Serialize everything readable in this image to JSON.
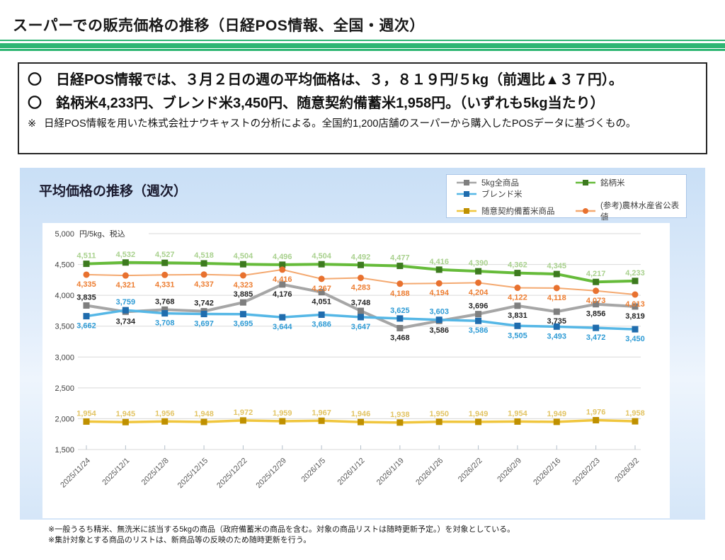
{
  "page": {
    "title": "スーパーでの販売価格の推移（日経POS情報、全国・週次）"
  },
  "colors": {
    "accent_green": "#2eb673",
    "panel_blue": "#c9dff6",
    "gridline": "#d9d9d9"
  },
  "summary_box": {
    "lines": [
      {
        "bullet": "〇",
        "text": "日経POS情報では、３月２日の週の平均価格は、３，８１９円/５kg（前週比▲３７円）。"
      },
      {
        "bullet": "〇",
        "text": "銘柄米4,233円、ブレンド米3,450円、随意契約備蓄米1,958円。（いずれも5kg当たり）"
      },
      {
        "bullet": "※",
        "text": "日経POS情報を用いた株式会社ナウキャストの分析による。全国約1,200店舗のスーパーから購入したPOSデータに基づくもの。"
      }
    ]
  },
  "chart_panel": {
    "title": "平均価格の推移（週次）"
  },
  "chart_data": {
    "type": "line",
    "title": "平均価格の推移（週次）",
    "ylabel": "円/5kg、税込",
    "ylim": [
      1500,
      5000
    ],
    "ytick_step": 500,
    "grid": true,
    "legend_position": "top-right",
    "categories": [
      "2025/11/24",
      "2025/12/1",
      "2025/12/8",
      "2025/12/15",
      "2025/12/22",
      "2025/12/29",
      "2026/1/5",
      "2026/1/12",
      "2026/1/19",
      "2026/1/26",
      "2026/2/2",
      "2026/2/9",
      "2026/2/16",
      "2026/2/23",
      "2026/3/2"
    ],
    "series": [
      {
        "name": "5kg全商品",
        "marker": "square",
        "color_line": "#a6a6a6",
        "color_marker": "#7f7f7f",
        "color_label": "#262626",
        "line_width": 4,
        "values": [
          3835,
          3734,
          3768,
          3742,
          3885,
          4176,
          4051,
          3748,
          3468,
          3586,
          3696,
          3831,
          3735,
          3856,
          3819
        ],
        "label_side": [
          "above",
          "below",
          "above",
          "above",
          "above",
          "below",
          "below",
          "above",
          "below",
          "below",
          "above",
          "below",
          "below",
          "below",
          "below"
        ]
      },
      {
        "name": "銘柄米",
        "marker": "square",
        "color_line": "#66bb3a",
        "color_marker": "#3d7a1f",
        "color_label": "#a9d18e",
        "line_width": 4,
        "values": [
          4511,
          4532,
          4527,
          4518,
          4504,
          4496,
          4504,
          4492,
          4477,
          4416,
          4390,
          4362,
          4345,
          4217,
          4233
        ],
        "label_side": "above"
      },
      {
        "name": "ブレンド米",
        "marker": "square",
        "color_line": "#55b7e6",
        "color_marker": "#1f6cad",
        "color_label": "#2e9bd5",
        "line_width": 3.5,
        "values": [
          3662,
          3759,
          3708,
          3697,
          3695,
          3644,
          3686,
          3647,
          3625,
          3603,
          3586,
          3505,
          3493,
          3472,
          3450
        ],
        "label_side": [
          "below",
          "above",
          "below",
          "below",
          "below",
          "below",
          "below",
          "below",
          "above",
          "above",
          "below",
          "below",
          "below",
          "below",
          "below"
        ]
      },
      {
        "name": "随意契約備蓄米商品",
        "marker": "square",
        "color_line": "#f0c63e",
        "color_marker": "#bf9000",
        "color_label": "#e2c464",
        "line_width": 3.5,
        "values": [
          1954,
          1945,
          1956,
          1948,
          1972,
          1959,
          1967,
          1946,
          1938,
          1950,
          1949,
          1954,
          1949,
          1976,
          1958
        ],
        "label_side": "above"
      },
      {
        "name": "(参考)農林水産省公表値",
        "marker": "circle",
        "color_line": "#f4a970",
        "color_marker": "#e8712f",
        "color_label": "#ed7d31",
        "line_width": 2,
        "values": [
          4335,
          4321,
          4331,
          4337,
          4323,
          4416,
          4267,
          4283,
          4188,
          4194,
          4204,
          4122,
          4118,
          4073,
          4013
        ],
        "label_side": "below"
      }
    ],
    "legend_layout": [
      {
        "series": 0,
        "col": 0,
        "row": 0
      },
      {
        "series": 2,
        "col": 0,
        "row": 1
      },
      {
        "series": 3,
        "col": 0,
        "row": 2
      },
      {
        "series": 1,
        "col": 1,
        "row": 0
      },
      {
        "series": 4,
        "col": 1,
        "row": 2
      }
    ]
  },
  "footnotes": [
    "※一般うるち精米、無洗米に該当する5kgの商品（政府備蓄米の商品を含む。対象の商品リストは随時更新予定。）を対象としている。",
    "※集計対象とする商品のリストは、新商品等の反映のため随時更新を行う。"
  ]
}
